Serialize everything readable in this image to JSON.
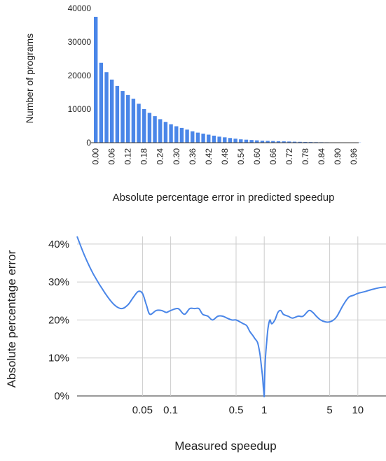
{
  "colors": {
    "series": "#4a86e8",
    "grid": "#cccccc",
    "axis": "#333333",
    "text": "#222222"
  },
  "chart_data": [
    {
      "type": "bar",
      "title": "",
      "xlabel": "Absolute percentage error in predicted speedup",
      "ylabel": "Number of programs",
      "ylim": [
        0,
        40000
      ],
      "yticks": [
        "0",
        "10000",
        "20000",
        "30000",
        "40000"
      ],
      "xtick_labels": [
        "0.00",
        "0.06",
        "0.12",
        "0.18",
        "0.24",
        "0.30",
        "0.36",
        "0.42",
        "0.48",
        "0.54",
        "0.60",
        "0.66",
        "0.72",
        "0.78",
        "0.84",
        "0.90",
        "0.96"
      ],
      "grid": "none",
      "categories": [
        "0.00",
        "0.02",
        "0.04",
        "0.06",
        "0.08",
        "0.10",
        "0.12",
        "0.14",
        "0.16",
        "0.18",
        "0.20",
        "0.22",
        "0.24",
        "0.26",
        "0.28",
        "0.30",
        "0.32",
        "0.34",
        "0.36",
        "0.38",
        "0.40",
        "0.42",
        "0.44",
        "0.46",
        "0.48",
        "0.50",
        "0.52",
        "0.54",
        "0.56",
        "0.58",
        "0.60",
        "0.62",
        "0.64",
        "0.66",
        "0.68",
        "0.70",
        "0.72",
        "0.74",
        "0.76",
        "0.78",
        "0.80",
        "0.82",
        "0.84",
        "0.86",
        "0.88",
        "0.90",
        "0.92",
        "0.94",
        "0.96",
        "0.98"
      ],
      "values": [
        37500,
        23800,
        21000,
        18800,
        16900,
        15400,
        14200,
        13100,
        11600,
        10000,
        8900,
        7900,
        7000,
        6200,
        5500,
        4900,
        4400,
        3900,
        3400,
        3000,
        2700,
        2400,
        2100,
        1800,
        1600,
        1400,
        1200,
        1000,
        900,
        800,
        700,
        600,
        550,
        500,
        450,
        400,
        350,
        300,
        260,
        220,
        190,
        160,
        140,
        120,
        100,
        90,
        80,
        70,
        60,
        50
      ]
    },
    {
      "type": "line",
      "title": "",
      "xlabel": "Measured speedup",
      "ylabel": "Absolute percentage error",
      "xscale": "log",
      "xlim": [
        0.01,
        20
      ],
      "ylim": [
        0,
        42
      ],
      "xticks": [
        {
          "value": 0.05,
          "label": "0.05"
        },
        {
          "value": 0.1,
          "label": "0.1"
        },
        {
          "value": 0.5,
          "label": "0.5"
        },
        {
          "value": 1,
          "label": "1"
        },
        {
          "value": 5,
          "label": "5"
        },
        {
          "value": 10,
          "label": "10"
        }
      ],
      "yticks": [
        {
          "value": 0,
          "label": "0%"
        },
        {
          "value": 10,
          "label": "10%"
        },
        {
          "value": 20,
          "label": "20%"
        },
        {
          "value": 30,
          "label": "30%"
        },
        {
          "value": 40,
          "label": "40%"
        }
      ],
      "grid": "on",
      "x": [
        0.01,
        0.012,
        0.015,
        0.02,
        0.025,
        0.03,
        0.035,
        0.04,
        0.045,
        0.05,
        0.055,
        0.06,
        0.07,
        0.08,
        0.09,
        0.1,
        0.12,
        0.14,
        0.16,
        0.18,
        0.2,
        0.22,
        0.25,
        0.28,
        0.32,
        0.36,
        0.4,
        0.45,
        0.5,
        0.55,
        0.6,
        0.65,
        0.7,
        0.75,
        0.8,
        0.85,
        0.9,
        0.93,
        0.96,
        0.98,
        0.99,
        1.0,
        1.01,
        1.03,
        1.06,
        1.1,
        1.15,
        1.2,
        1.3,
        1.4,
        1.5,
        1.6,
        1.8,
        2.0,
        2.3,
        2.6,
        3.0,
        3.3,
        3.6,
        4.0,
        4.5,
        5.0,
        5.5,
        6.0,
        7.0,
        8.0,
        9.0,
        10,
        12,
        14,
        17,
        20
      ],
      "y": [
        42,
        37,
        32,
        27,
        24,
        23,
        24,
        26,
        27.5,
        27,
        24,
        21.5,
        22.5,
        22.5,
        22,
        22.5,
        23,
        21.5,
        23,
        23,
        23,
        21.5,
        21,
        20,
        21,
        21,
        20.5,
        20,
        20,
        19.5,
        19,
        18.5,
        17,
        16,
        15,
        14,
        11,
        8,
        5,
        2,
        1,
        0,
        5,
        10,
        14,
        18,
        20,
        19,
        20,
        22,
        22.5,
        21.5,
        21,
        20.5,
        21,
        21,
        22.5,
        22,
        21,
        20,
        19.5,
        19.5,
        20,
        21,
        24,
        26,
        26.5,
        27,
        27.5,
        28,
        28.5,
        28.7
      ]
    }
  ]
}
